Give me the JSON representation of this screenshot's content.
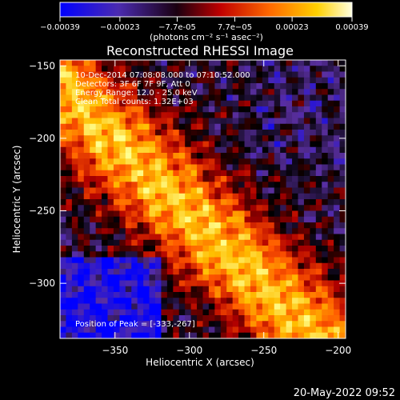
{
  "colorbar": {
    "ticks": [
      "-0.00039",
      "-0.00023",
      "-7.7e-05",
      "7.7e-05",
      "0.00023",
      "0.00039"
    ],
    "units": "(photons cm⁻² s⁻¹ asec⁻²)",
    "min": -0.00039,
    "max": 0.00039
  },
  "chart_data": {
    "type": "heatmap",
    "title": "Reconstructed RHESSI Image",
    "xlabel": "Heliocentric X (arcsec)",
    "ylabel": "Heliocentric Y (arcsec)",
    "xlim": [
      -387,
      -195
    ],
    "ylim": [
      -338,
      -146
    ],
    "xticks": [
      {
        "value": -350,
        "label": "−350"
      },
      {
        "value": -300,
        "label": "−300"
      },
      {
        "value": -250,
        "label": "−250"
      },
      {
        "value": -200,
        "label": "−200"
      }
    ],
    "yticks": [
      {
        "value": -150,
        "label": "−150"
      },
      {
        "value": -200,
        "label": "−200"
      },
      {
        "value": -250,
        "label": "−250"
      },
      {
        "value": -300,
        "label": "−300"
      }
    ],
    "annotations": [
      "10-Dec-2014 07:08:08.000 to 07:10:52.000",
      "Detectors: 3F 6F 7F 9F, Att 0",
      "Energy Range: 12.0 - 25.0 keV",
      "Clean     Total counts: 1.32E+03"
    ],
    "peak": {
      "label": "Position of Peak = [-333,-267]",
      "x": -333,
      "y": -267
    },
    "colormap": [
      "#0000ff",
      "#5a2fa0",
      "#000000",
      "#b00000",
      "#ff5500",
      "#ffbf00",
      "#ffff90"
    ],
    "grid": false
  },
  "footer": {
    "timestamp": "20-May-2022 09:52"
  }
}
